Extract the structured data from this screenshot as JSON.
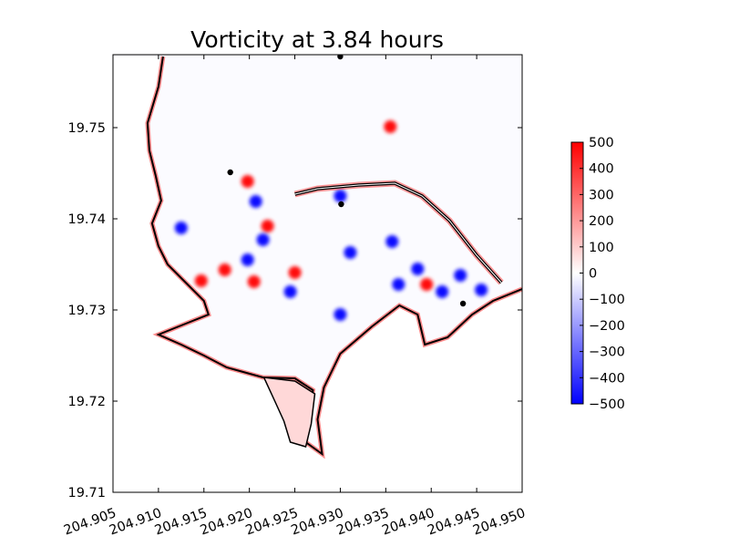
{
  "chart_data": {
    "type": "heatmap",
    "title": "Vorticity at 3.84 hours",
    "xlabel": "",
    "ylabel": "",
    "xlim": [
      204.905,
      204.95
    ],
    "ylim": [
      19.71,
      19.758
    ],
    "x_ticks": [
      "204.905",
      "204.910",
      "204.915",
      "204.920",
      "204.925",
      "204.930",
      "204.935",
      "204.940",
      "204.945",
      "204.950"
    ],
    "y_ticks": [
      "19.71",
      "19.72",
      "19.73",
      "19.74",
      "19.75"
    ],
    "colorbar": {
      "vmin": -500,
      "vmax": 500,
      "ticks": [
        "500",
        "400",
        "300",
        "200",
        "100",
        "0",
        "−100",
        "−200",
        "−300",
        "−400",
        "−500"
      ],
      "colormap": "bwr",
      "color_low": "#0000ff",
      "color_mid": "#ffffff",
      "color_high": "#ff0000"
    },
    "gauge_points": [
      {
        "x": 204.93,
        "y": 19.7578
      },
      {
        "x": 204.9179,
        "y": 19.7451
      },
      {
        "x": 204.9301,
        "y": 19.7416
      },
      {
        "x": 204.9435,
        "y": 19.7307
      }
    ],
    "eddies": [
      {
        "x": 204.9355,
        "y": 19.7501,
        "sign": "positive"
      },
      {
        "x": 204.9198,
        "y": 19.7441,
        "sign": "positive"
      },
      {
        "x": 204.922,
        "y": 19.7392,
        "sign": "positive"
      },
      {
        "x": 204.9173,
        "y": 19.7344,
        "sign": "positive"
      },
      {
        "x": 204.925,
        "y": 19.7341,
        "sign": "positive"
      },
      {
        "x": 204.9205,
        "y": 19.7331,
        "sign": "positive"
      },
      {
        "x": 204.9395,
        "y": 19.7328,
        "sign": "positive"
      },
      {
        "x": 204.9147,
        "y": 19.7332,
        "sign": "positive"
      },
      {
        "x": 204.9207,
        "y": 19.7419,
        "sign": "negative"
      },
      {
        "x": 204.93,
        "y": 19.7425,
        "sign": "negative"
      },
      {
        "x": 204.9215,
        "y": 19.7377,
        "sign": "negative"
      },
      {
        "x": 204.9198,
        "y": 19.7355,
        "sign": "negative"
      },
      {
        "x": 204.9311,
        "y": 19.7363,
        "sign": "negative"
      },
      {
        "x": 204.9364,
        "y": 19.7328,
        "sign": "negative"
      },
      {
        "x": 204.9432,
        "y": 19.7338,
        "sign": "negative"
      },
      {
        "x": 204.9412,
        "y": 19.732,
        "sign": "negative"
      },
      {
        "x": 204.93,
        "y": 19.7295,
        "sign": "negative"
      },
      {
        "x": 204.9357,
        "y": 19.7375,
        "sign": "negative"
      },
      {
        "x": 204.9245,
        "y": 19.732,
        "sign": "negative"
      },
      {
        "x": 204.9125,
        "y": 19.739,
        "sign": "negative"
      },
      {
        "x": 204.9385,
        "y": 19.7345,
        "sign": "negative"
      },
      {
        "x": 204.9455,
        "y": 19.7322,
        "sign": "negative"
      }
    ],
    "coastline": [
      [
        204.9105,
        19.7578
      ],
      [
        204.91,
        19.7545
      ],
      [
        204.9088,
        19.7505
      ],
      [
        204.909,
        19.7475
      ],
      [
        204.9097,
        19.7447
      ],
      [
        204.9103,
        19.742
      ],
      [
        204.9093,
        19.7395
      ],
      [
        204.91,
        19.737
      ],
      [
        204.911,
        19.735
      ],
      [
        204.913,
        19.733
      ],
      [
        204.915,
        19.731
      ],
      [
        204.9155,
        19.7295
      ],
      [
        204.913,
        19.7285
      ],
      [
        204.91,
        19.7273
      ],
      [
        204.9125,
        19.7262
      ],
      [
        204.915,
        19.725
      ],
      [
        204.9175,
        19.7237
      ],
      [
        204.9215,
        19.7226
      ],
      [
        204.925,
        19.7225
      ],
      [
        204.927,
        19.7212
      ],
      [
        204.9265,
        19.718
      ],
      [
        204.9262,
        19.7155
      ],
      [
        204.928,
        19.7142
      ],
      [
        204.9275,
        19.718
      ],
      [
        204.9282,
        19.7215
      ],
      [
        204.93,
        19.7252
      ],
      [
        204.9335,
        19.7282
      ],
      [
        204.9365,
        19.7305
      ],
      [
        204.9385,
        19.7295
      ],
      [
        204.9393,
        19.7262
      ],
      [
        204.9418,
        19.727
      ],
      [
        204.9445,
        19.7295
      ],
      [
        204.9468,
        19.731
      ],
      [
        204.95,
        19.7323
      ]
    ],
    "breakwater": [
      [
        204.925,
        19.7427
      ],
      [
        204.9275,
        19.7433
      ],
      [
        204.932,
        19.7437
      ],
      [
        204.936,
        19.7439
      ],
      [
        204.939,
        19.7425
      ],
      [
        204.942,
        19.7398
      ],
      [
        204.945,
        19.736
      ],
      [
        204.9477,
        19.733
      ]
    ],
    "lagoon_outline": [
      [
        204.9216,
        19.7226
      ],
      [
        204.925,
        19.7222
      ],
      [
        204.9272,
        19.7208
      ],
      [
        204.9268,
        19.7175
      ],
      [
        204.9262,
        19.715
      ],
      [
        204.9245,
        19.7155
      ],
      [
        204.9238,
        19.7178
      ],
      [
        204.9228,
        19.72
      ]
    ],
    "land_region": [
      [
        204.9105,
        19.7578
      ],
      [
        204.905,
        19.7578
      ],
      [
        204.905,
        19.71
      ],
      [
        204.95,
        19.71
      ],
      [
        204.95,
        19.7323
      ],
      [
        204.9468,
        19.731
      ],
      [
        204.9445,
        19.7295
      ],
      [
        204.9418,
        19.727
      ],
      [
        204.9393,
        19.7262
      ],
      [
        204.9385,
        19.7295
      ],
      [
        204.9365,
        19.7305
      ],
      [
        204.9335,
        19.7282
      ],
      [
        204.93,
        19.7252
      ],
      [
        204.9282,
        19.7215
      ],
      [
        204.9275,
        19.718
      ],
      [
        204.928,
        19.7142
      ],
      [
        204.9262,
        19.7155
      ],
      [
        204.9265,
        19.718
      ],
      [
        204.927,
        19.7212
      ],
      [
        204.925,
        19.7225
      ],
      [
        204.9215,
        19.7226
      ],
      [
        204.9175,
        19.7237
      ],
      [
        204.915,
        19.725
      ],
      [
        204.9125,
        19.7262
      ],
      [
        204.91,
        19.7273
      ],
      [
        204.913,
        19.7285
      ],
      [
        204.9155,
        19.7295
      ],
      [
        204.915,
        19.731
      ],
      [
        204.913,
        19.733
      ],
      [
        204.911,
        19.735
      ],
      [
        204.91,
        19.737
      ],
      [
        204.9093,
        19.7395
      ],
      [
        204.9103,
        19.742
      ],
      [
        204.9097,
        19.7447
      ],
      [
        204.909,
        19.7475
      ],
      [
        204.9088,
        19.7505
      ],
      [
        204.91,
        19.7545
      ]
    ]
  }
}
